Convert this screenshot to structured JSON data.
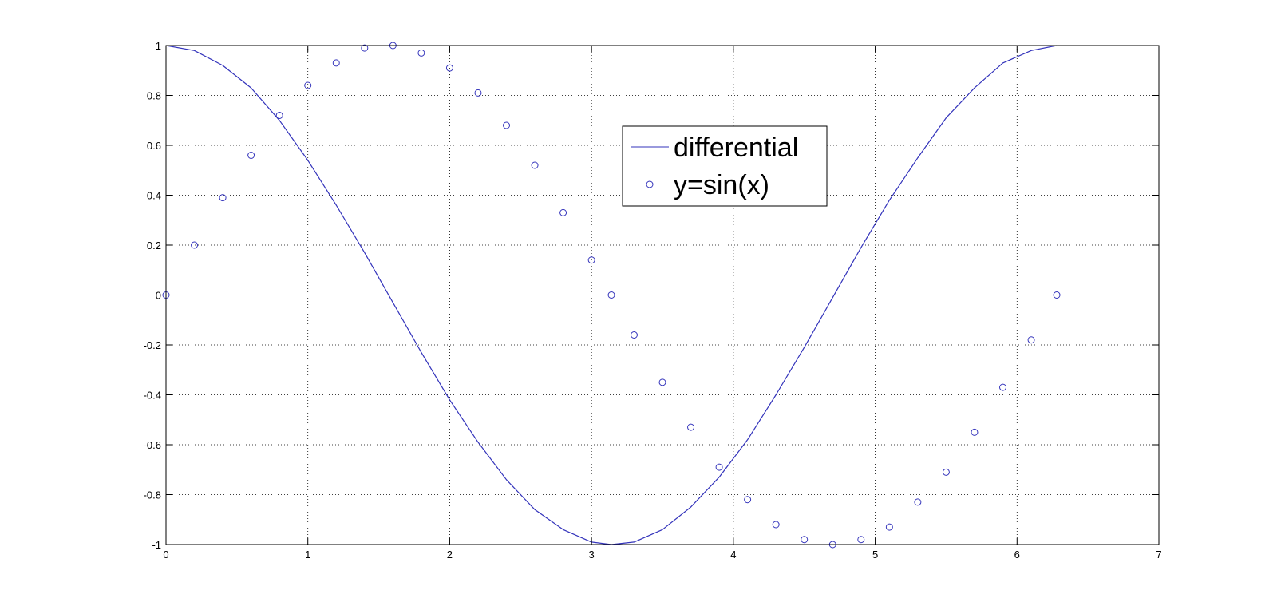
{
  "chart_data": {
    "type": "line",
    "title": "",
    "xlabel": "",
    "ylabel": "",
    "xlim": [
      0,
      7
    ],
    "ylim": [
      -1,
      1
    ],
    "xticks": [
      0,
      1,
      2,
      3,
      4,
      5,
      6,
      7
    ],
    "xtick_labels": [
      "0",
      "1",
      "2",
      "3",
      "4",
      "5",
      "6",
      "7"
    ],
    "yticks": [
      -1,
      -0.8,
      -0.6,
      -0.4,
      -0.2,
      0,
      0.2,
      0.4,
      0.6,
      0.8,
      1
    ],
    "ytick_labels": [
      "-1",
      "-0.8",
      "-0.6",
      "-0.4",
      "-0.2",
      "0",
      "0.2",
      "0.4",
      "0.6",
      "0.8",
      "1"
    ],
    "grid": true,
    "legend_position": "upper-center",
    "series": [
      {
        "name": "differential",
        "style": "line",
        "color": "#3333bb",
        "x": [
          0,
          0.2,
          0.4,
          0.6,
          0.8,
          1.0,
          1.2,
          1.4,
          1.6,
          1.8,
          2.0,
          2.2,
          2.4,
          2.6,
          2.8,
          3.0,
          3.14,
          3.3,
          3.5,
          3.7,
          3.9,
          4.1,
          4.3,
          4.5,
          4.7,
          4.9,
          5.1,
          5.3,
          5.5,
          5.7,
          5.9,
          6.1,
          6.28
        ],
        "y": [
          1.0,
          0.98,
          0.92,
          0.83,
          0.7,
          0.54,
          0.36,
          0.17,
          -0.03,
          -0.23,
          -0.42,
          -0.59,
          -0.74,
          -0.86,
          -0.94,
          -0.99,
          -1.0,
          -0.99,
          -0.94,
          -0.85,
          -0.73,
          -0.58,
          -0.4,
          -0.21,
          -0.01,
          0.19,
          0.38,
          0.55,
          0.71,
          0.83,
          0.93,
          0.98,
          1.0
        ]
      },
      {
        "name": "y=sin(x)",
        "style": "markers",
        "marker": "circle",
        "color": "#3333bb",
        "x": [
          0,
          0.2,
          0.4,
          0.6,
          0.8,
          1.0,
          1.2,
          1.4,
          1.6,
          1.8,
          2.0,
          2.2,
          2.4,
          2.6,
          2.8,
          3.0,
          3.14,
          3.3,
          3.5,
          3.7,
          3.9,
          4.1,
          4.3,
          4.5,
          4.7,
          4.9,
          5.1,
          5.3,
          5.5,
          5.7,
          5.9,
          6.1,
          6.28
        ],
        "y": [
          0.0,
          0.2,
          0.39,
          0.56,
          0.72,
          0.84,
          0.93,
          0.99,
          1.0,
          0.97,
          0.91,
          0.81,
          0.68,
          0.52,
          0.33,
          0.14,
          0.0,
          -0.16,
          -0.35,
          -0.53,
          -0.69,
          -0.82,
          -0.92,
          -0.98,
          -1.0,
          -0.98,
          -0.93,
          -0.83,
          -0.71,
          -0.55,
          -0.37,
          -0.18,
          0.0
        ]
      }
    ]
  }
}
